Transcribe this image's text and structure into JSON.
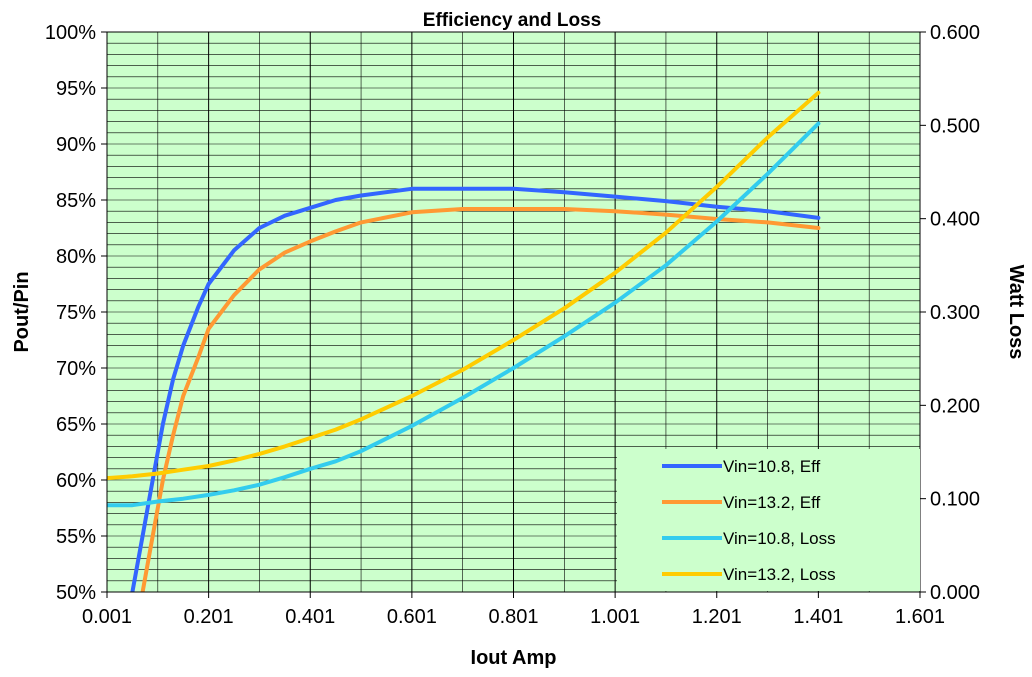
{
  "chart_data": {
    "type": "line",
    "title": "Efficiency and Loss",
    "xlabel": "Iout Amp",
    "ylabel": "Pout/Pin",
    "y2label": "Watt Loss",
    "xlim": [
      0.001,
      1.601
    ],
    "ylim": [
      50,
      100
    ],
    "y2lim": [
      0,
      0.6
    ],
    "x_ticks": [
      "0.001",
      "0.201",
      "0.401",
      "0.601",
      "0.801",
      "1.001",
      "1.201",
      "1.401",
      "1.601"
    ],
    "y_ticks": [
      "50%",
      "55%",
      "60%",
      "65%",
      "70%",
      "75%",
      "80%",
      "85%",
      "90%",
      "95%",
      "100%"
    ],
    "y2_ticks": [
      "0.000",
      "0.100",
      "0.200",
      "0.300",
      "0.400",
      "0.500",
      "0.600"
    ],
    "grid": true,
    "plot_background": "#ccffcc",
    "legend_position": "bottom-right",
    "series": [
      {
        "name": "Vin=10.8, Eff",
        "axis": "left",
        "color": "#3366ff",
        "x": [
          0.051,
          0.071,
          0.091,
          0.111,
          0.131,
          0.151,
          0.181,
          0.201,
          0.251,
          0.301,
          0.351,
          0.401,
          0.451,
          0.501,
          0.601,
          0.701,
          0.801,
          0.901,
          1.001,
          1.101,
          1.201,
          1.301,
          1.401
        ],
        "y": [
          50.0,
          55.0,
          60.0,
          65.0,
          69.0,
          72.0,
          75.5,
          77.5,
          80.5,
          82.5,
          83.6,
          84.3,
          85.0,
          85.4,
          86.0,
          86.0,
          86.0,
          85.7,
          85.3,
          84.9,
          84.4,
          84.0,
          83.4
        ]
      },
      {
        "name": "Vin=13.2, Eff",
        "axis": "left",
        "color": "#ff9933",
        "x": [
          0.071,
          0.091,
          0.111,
          0.131,
          0.151,
          0.181,
          0.201,
          0.251,
          0.301,
          0.351,
          0.401,
          0.451,
          0.501,
          0.601,
          0.701,
          0.801,
          0.901,
          1.001,
          1.101,
          1.201,
          1.301,
          1.401
        ],
        "y": [
          50.0,
          55.0,
          60.0,
          64.0,
          67.5,
          71.0,
          73.5,
          76.5,
          78.8,
          80.3,
          81.3,
          82.2,
          83.0,
          83.9,
          84.2,
          84.2,
          84.2,
          84.0,
          83.7,
          83.3,
          83.0,
          82.5
        ]
      },
      {
        "name": "Vin=10.8, Loss",
        "axis": "right",
        "color": "#33ccee",
        "x": [
          0.001,
          0.051,
          0.101,
          0.151,
          0.201,
          0.251,
          0.301,
          0.351,
          0.401,
          0.451,
          0.501,
          0.601,
          0.701,
          0.801,
          0.901,
          1.001,
          1.101,
          1.201,
          1.301,
          1.401
        ],
        "y": [
          0.093,
          0.093,
          0.097,
          0.1,
          0.104,
          0.109,
          0.115,
          0.123,
          0.132,
          0.14,
          0.151,
          0.178,
          0.208,
          0.24,
          0.274,
          0.31,
          0.35,
          0.397,
          0.448,
          0.502
        ]
      },
      {
        "name": "Vin=13.2, Loss",
        "axis": "right",
        "color": "#ffcc00",
        "x": [
          0.001,
          0.051,
          0.101,
          0.151,
          0.201,
          0.251,
          0.301,
          0.351,
          0.401,
          0.451,
          0.501,
          0.601,
          0.701,
          0.801,
          0.901,
          1.001,
          1.101,
          1.201,
          1.301,
          1.401
        ],
        "y": [
          0.122,
          0.124,
          0.127,
          0.131,
          0.135,
          0.141,
          0.148,
          0.156,
          0.165,
          0.174,
          0.185,
          0.21,
          0.238,
          0.27,
          0.304,
          0.342,
          0.385,
          0.434,
          0.487,
          0.535
        ]
      }
    ]
  }
}
